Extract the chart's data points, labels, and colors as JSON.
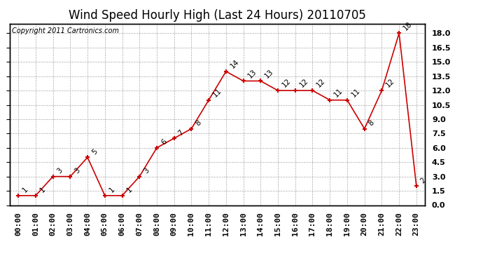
{
  "title": "Wind Speed Hourly High (Last 24 Hours) 20110705",
  "copyright": "Copyright 2011 Cartronics.com",
  "hours": [
    "00:00",
    "01:00",
    "02:00",
    "03:00",
    "04:00",
    "05:00",
    "06:00",
    "07:00",
    "08:00",
    "09:00",
    "10:00",
    "11:00",
    "12:00",
    "13:00",
    "14:00",
    "15:00",
    "16:00",
    "17:00",
    "18:00",
    "19:00",
    "20:00",
    "21:00",
    "22:00",
    "23:00"
  ],
  "values": [
    1,
    1,
    3,
    3,
    5,
    1,
    1,
    3,
    6,
    7,
    8,
    11,
    14,
    13,
    13,
    12,
    12,
    12,
    11,
    11,
    8,
    12,
    18,
    2
  ],
  "line_color": "#cc0000",
  "marker_color": "#cc0000",
  "grid_color": "#aaaaaa",
  "background_color": "#ffffff",
  "plot_bg_color": "#ffffff",
  "ylim": [
    0,
    19.0
  ],
  "yticks": [
    0.0,
    1.5,
    3.0,
    4.5,
    6.0,
    7.5,
    9.0,
    10.5,
    12.0,
    13.5,
    15.0,
    16.5,
    18.0
  ],
  "ytick_labels": [
    "0.0",
    "1.5",
    "3.0",
    "4.5",
    "6.0",
    "7.5",
    "9.0",
    "10.5",
    "12.0",
    "13.5",
    "15.0",
    "16.5",
    "18.0"
  ],
  "title_fontsize": 12,
  "label_fontsize": 8,
  "copyright_fontsize": 7,
  "annotation_fontsize": 7.5
}
